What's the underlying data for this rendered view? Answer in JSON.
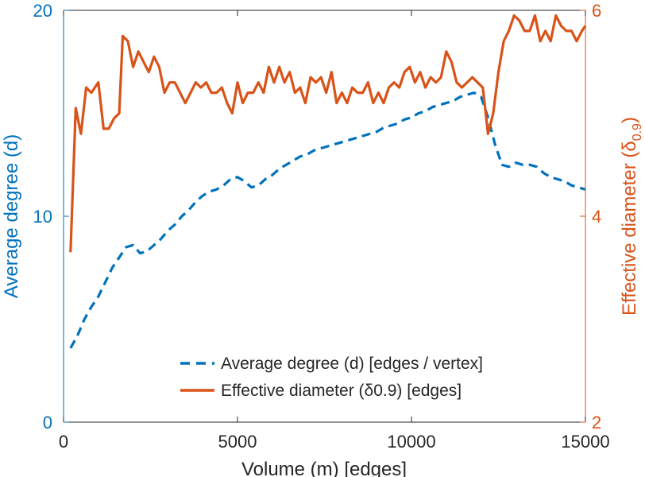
{
  "chart_data": {
    "type": "line",
    "title": "",
    "xlabel": "Volume (m) [edges]",
    "ylabel_left": "Average degree (d)",
    "ylabel_right": "Effective diameter (δ",
    "ylabel_right_sub": "0.9",
    "ylabel_right_end": ")",
    "xlim": [
      0,
      15000
    ],
    "ylim_left": [
      0,
      20
    ],
    "ylim_right": [
      2,
      6
    ],
    "x_ticks": [
      "0",
      "5000",
      "10000",
      "15000"
    ],
    "y_left_ticks": [
      "0",
      "10",
      "20"
    ],
    "y_right_ticks": [
      "2",
      "4",
      "6"
    ],
    "legend_position": "bottom-center",
    "colors": {
      "left": "#0072BD",
      "right": "#D95319",
      "axis_text": "#262626"
    },
    "series": [
      {
        "name": "Average degree (d) [edges / vertex]",
        "axis": "left",
        "style": "dashed",
        "x": [
          200,
          400,
          600,
          800,
          1000,
          1200,
          1400,
          1600,
          1800,
          2000,
          2200,
          2400,
          2600,
          2800,
          3000,
          3200,
          3400,
          3600,
          3800,
          4000,
          4200,
          4400,
          4600,
          4800,
          5000,
          5200,
          5400,
          5600,
          5800,
          6000,
          6200,
          6400,
          6600,
          6800,
          7000,
          7200,
          7400,
          7600,
          7800,
          8000,
          8200,
          8400,
          8600,
          8800,
          9000,
          9200,
          9400,
          9600,
          9800,
          10000,
          10200,
          10400,
          10600,
          10800,
          11000,
          11200,
          11400,
          11600,
          11800,
          12000,
          12200,
          12400,
          12600,
          12800,
          13000,
          13200,
          13400,
          13600,
          13800,
          14000,
          14200,
          14400,
          14600,
          14800,
          15000
        ],
        "values": [
          3.6,
          4.2,
          5.0,
          5.6,
          6.1,
          6.8,
          7.5,
          8.0,
          8.5,
          8.6,
          8.2,
          8.3,
          8.6,
          8.9,
          9.3,
          9.6,
          10.0,
          10.3,
          10.7,
          11.0,
          11.2,
          11.3,
          11.5,
          11.8,
          11.9,
          11.7,
          11.4,
          11.5,
          11.8,
          12.0,
          12.3,
          12.5,
          12.7,
          12.9,
          13.0,
          13.2,
          13.3,
          13.4,
          13.5,
          13.6,
          13.7,
          13.8,
          13.9,
          14.0,
          14.1,
          14.3,
          14.4,
          14.5,
          14.7,
          14.8,
          15.0,
          15.1,
          15.3,
          15.4,
          15.5,
          15.6,
          15.8,
          15.9,
          16.0,
          15.8,
          14.8,
          13.5,
          12.5,
          12.4,
          12.6,
          12.5,
          12.5,
          12.4,
          12.1,
          11.9,
          11.8,
          11.7,
          11.5,
          11.4,
          11.3
        ]
      },
      {
        "name": "Effective diameter (δ0.9) [edges]",
        "axis": "right",
        "style": "solid",
        "x": [
          200,
          350,
          500,
          650,
          800,
          1000,
          1150,
          1300,
          1450,
          1600,
          1700,
          1850,
          2000,
          2150,
          2300,
          2450,
          2600,
          2750,
          2900,
          3050,
          3200,
          3350,
          3500,
          3650,
          3800,
          3950,
          4100,
          4250,
          4400,
          4550,
          4700,
          4850,
          5000,
          5150,
          5300,
          5450,
          5600,
          5750,
          5900,
          6050,
          6200,
          6350,
          6500,
          6650,
          6800,
          6950,
          7100,
          7250,
          7400,
          7550,
          7700,
          7850,
          8000,
          8150,
          8300,
          8450,
          8600,
          8750,
          8900,
          9050,
          9200,
          9350,
          9500,
          9650,
          9800,
          9950,
          10100,
          10250,
          10400,
          10550,
          10700,
          10850,
          11000,
          11150,
          11300,
          11450,
          11600,
          11750,
          11900,
          12050,
          12200,
          12350,
          12500,
          12650,
          12800,
          12950,
          13100,
          13250,
          13400,
          13550,
          13700,
          13850,
          14000,
          14150,
          14300,
          14450,
          14600,
          14750,
          14900,
          15000
        ],
        "values": [
          3.65,
          5.05,
          4.8,
          5.25,
          5.2,
          5.3,
          4.85,
          4.85,
          4.95,
          5.0,
          5.75,
          5.7,
          5.45,
          5.6,
          5.5,
          5.4,
          5.55,
          5.45,
          5.2,
          5.3,
          5.3,
          5.2,
          5.1,
          5.2,
          5.3,
          5.25,
          5.3,
          5.2,
          5.2,
          5.25,
          5.1,
          5.0,
          5.3,
          5.1,
          5.2,
          5.2,
          5.3,
          5.2,
          5.45,
          5.3,
          5.45,
          5.3,
          5.4,
          5.2,
          5.25,
          5.1,
          5.35,
          5.3,
          5.35,
          5.2,
          5.4,
          5.1,
          5.2,
          5.1,
          5.25,
          5.2,
          5.2,
          5.3,
          5.1,
          5.2,
          5.1,
          5.25,
          5.3,
          5.25,
          5.4,
          5.45,
          5.3,
          5.4,
          5.25,
          5.35,
          5.3,
          5.35,
          5.6,
          5.5,
          5.3,
          5.25,
          5.3,
          5.35,
          5.3,
          5.25,
          4.8,
          5.0,
          5.4,
          5.7,
          5.8,
          5.95,
          5.9,
          5.8,
          5.8,
          5.95,
          5.7,
          5.8,
          5.7,
          5.95,
          5.85,
          5.8,
          5.8,
          5.7,
          5.8,
          5.85
        ]
      }
    ]
  }
}
